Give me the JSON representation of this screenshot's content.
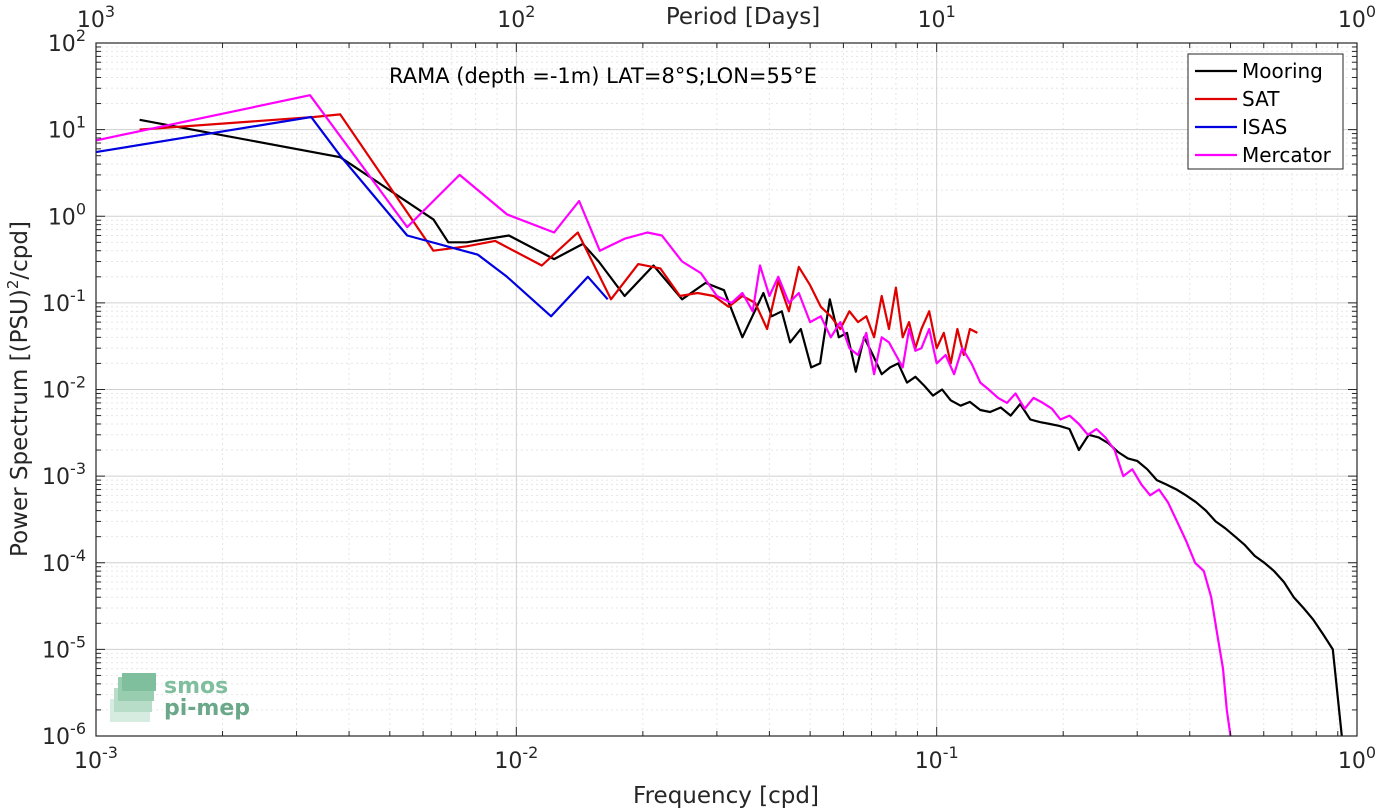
{
  "chart_data": {
    "type": "line",
    "scale": "log-log",
    "grid": true,
    "title": "",
    "annotation": "RAMA (depth =-1m) LAT=8°S;LON=55°E",
    "xlabel": "Frequency [cpd]",
    "ylabel": "Power Spectrum [(PSU)",
    "ylabel_sup": "2",
    "ylabel_tail": "/cpd]",
    "top_xlabel": "Period [Days]",
    "xlim": [
      0.001,
      1
    ],
    "ylim": [
      1e-06,
      100
    ],
    "x_ticks": [
      {
        "value": 0.001,
        "base": "10",
        "exp": "-3"
      },
      {
        "value": 0.01,
        "base": "10",
        "exp": "-2"
      },
      {
        "value": 0.1,
        "base": "10",
        "exp": "-1"
      },
      {
        "value": 1,
        "base": "10",
        "exp": "0"
      }
    ],
    "top_ticks": [
      {
        "value": 0.001,
        "base": "10",
        "exp": "3"
      },
      {
        "value": 0.01,
        "base": "10",
        "exp": "2"
      },
      {
        "value": 0.1,
        "base": "10",
        "exp": "1"
      },
      {
        "value": 1,
        "base": "10",
        "exp": "0"
      }
    ],
    "y_ticks": [
      {
        "value": 100,
        "base": "10",
        "exp": "2"
      },
      {
        "value": 10,
        "base": "10",
        "exp": "1"
      },
      {
        "value": 1,
        "base": "10",
        "exp": "0"
      },
      {
        "value": 0.1,
        "base": "10",
        "exp": "-1"
      },
      {
        "value": 0.01,
        "base": "10",
        "exp": "-2"
      },
      {
        "value": 0.001,
        "base": "10",
        "exp": "-3"
      },
      {
        "value": 0.0001,
        "base": "10",
        "exp": "-4"
      },
      {
        "value": 1e-05,
        "base": "10",
        "exp": "-5"
      },
      {
        "value": 1e-06,
        "base": "10",
        "exp": "-6"
      }
    ],
    "legend_position": "top-right",
    "series": [
      {
        "name": "Mooring",
        "color": "#000000",
        "x": [
          0.00127,
          0.00381,
          0.00635,
          0.00689,
          0.00762,
          0.0096,
          0.0123,
          0.0144,
          0.0157,
          0.0181,
          0.0212,
          0.0248,
          0.0282,
          0.0312,
          0.0345,
          0.0387,
          0.0405,
          0.0428,
          0.0448,
          0.0475,
          0.0503,
          0.0528,
          0.0557,
          0.0585,
          0.0612,
          0.0642,
          0.0672,
          0.0705,
          0.074,
          0.0775,
          0.081,
          0.085,
          0.089,
          0.0935,
          0.098,
          0.103,
          0.108,
          0.114,
          0.12,
          0.127,
          0.134,
          0.142,
          0.15,
          0.158,
          0.167,
          0.176,
          0.186,
          0.196,
          0.207,
          0.218,
          0.23,
          0.243,
          0.256,
          0.27,
          0.285,
          0.3,
          0.317,
          0.334,
          0.352,
          0.372,
          0.392,
          0.414,
          0.437,
          0.461,
          0.486,
          0.513,
          0.541,
          0.571,
          0.602,
          0.635,
          0.67,
          0.707,
          0.746,
          0.787,
          0.83,
          0.876,
          0.92
        ],
        "y": [
          13,
          4.8,
          0.92,
          0.5,
          0.5,
          0.6,
          0.32,
          0.48,
          0.3,
          0.12,
          0.27,
          0.11,
          0.17,
          0.14,
          0.04,
          0.13,
          0.07,
          0.08,
          0.035,
          0.05,
          0.018,
          0.02,
          0.11,
          0.04,
          0.045,
          0.016,
          0.04,
          0.025,
          0.015,
          0.018,
          0.02,
          0.012,
          0.014,
          0.011,
          0.0085,
          0.01,
          0.0075,
          0.0065,
          0.0072,
          0.0058,
          0.0055,
          0.0062,
          0.005,
          0.0068,
          0.0045,
          0.0042,
          0.004,
          0.0038,
          0.0035,
          0.002,
          0.003,
          0.0028,
          0.0024,
          0.0019,
          0.0016,
          0.0015,
          0.0012,
          0.0009,
          0.0008,
          0.0007,
          0.0006,
          0.0005,
          0.0004,
          0.0003,
          0.00025,
          0.0002,
          0.00016,
          0.00012,
          0.0001,
          8e-05,
          6e-05,
          4e-05,
          3e-05,
          2.2e-05,
          1.5e-05,
          1e-05,
          1e-06
        ]
      },
      {
        "name": "SAT",
        "color": "#e00000",
        "x": [
          0.00127,
          0.0033,
          0.00381,
          0.00635,
          0.00762,
          0.0089,
          0.0115,
          0.014,
          0.0168,
          0.0195,
          0.022,
          0.0245,
          0.027,
          0.0295,
          0.032,
          0.0345,
          0.037,
          0.0395,
          0.042,
          0.0445,
          0.047,
          0.05,
          0.053,
          0.056,
          0.059,
          0.062,
          0.065,
          0.068,
          0.071,
          0.074,
          0.077,
          0.08,
          0.083,
          0.086,
          0.089,
          0.092,
          0.096,
          0.1,
          0.104,
          0.108,
          0.112,
          0.116,
          0.12,
          0.125
        ],
        "y": [
          10,
          14,
          15,
          0.4,
          0.45,
          0.52,
          0.27,
          0.65,
          0.11,
          0.28,
          0.25,
          0.12,
          0.13,
          0.12,
          0.09,
          0.12,
          0.1,
          0.05,
          0.18,
          0.08,
          0.26,
          0.16,
          0.09,
          0.07,
          0.05,
          0.08,
          0.06,
          0.07,
          0.04,
          0.12,
          0.05,
          0.15,
          0.04,
          0.06,
          0.03,
          0.05,
          0.08,
          0.03,
          0.045,
          0.02,
          0.05,
          0.025,
          0.05,
          0.045
        ]
      },
      {
        "name": "ISAS",
        "color": "#0000e0",
        "x": [
          0.001,
          0.00325,
          0.00381,
          0.0055,
          0.0081,
          0.0095,
          0.0121,
          0.0148,
          0.0165
        ],
        "y": [
          5.5,
          14,
          5.0,
          0.6,
          0.36,
          0.2,
          0.07,
          0.2,
          0.11
        ]
      },
      {
        "name": "Mercator",
        "color": "#ff00ff",
        "x": [
          0.001,
          0.00323,
          0.0055,
          0.00733,
          0.0095,
          0.0123,
          0.0141,
          0.0158,
          0.0181,
          0.0205,
          0.0222,
          0.0248,
          0.0275,
          0.03,
          0.0325,
          0.0345,
          0.0365,
          0.038,
          0.04,
          0.042,
          0.0445,
          0.047,
          0.05,
          0.053,
          0.056,
          0.059,
          0.062,
          0.065,
          0.068,
          0.071,
          0.074,
          0.077,
          0.08,
          0.083,
          0.086,
          0.089,
          0.092,
          0.096,
          0.1,
          0.105,
          0.11,
          0.115,
          0.121,
          0.127,
          0.133,
          0.14,
          0.147,
          0.154,
          0.162,
          0.17,
          0.179,
          0.188,
          0.197,
          0.207,
          0.218,
          0.229,
          0.24,
          0.252,
          0.265,
          0.278,
          0.292,
          0.307,
          0.322,
          0.338,
          0.355,
          0.373,
          0.392,
          0.412,
          0.432,
          0.45,
          0.465,
          0.48,
          0.49,
          0.5
        ],
        "y": [
          7.5,
          25,
          0.75,
          3.0,
          1.05,
          0.65,
          1.5,
          0.4,
          0.55,
          0.65,
          0.6,
          0.3,
          0.22,
          0.12,
          0.1,
          0.13,
          0.08,
          0.27,
          0.12,
          0.2,
          0.1,
          0.13,
          0.06,
          0.07,
          0.04,
          0.06,
          0.03,
          0.025,
          0.045,
          0.015,
          0.04,
          0.035,
          0.025,
          0.018,
          0.05,
          0.028,
          0.03,
          0.05,
          0.02,
          0.025,
          0.015,
          0.03,
          0.02,
          0.012,
          0.01,
          0.008,
          0.007,
          0.009,
          0.006,
          0.008,
          0.007,
          0.006,
          0.0045,
          0.005,
          0.004,
          0.003,
          0.0035,
          0.0028,
          0.002,
          0.001,
          0.0012,
          0.0008,
          0.0006,
          0.0007,
          0.0005,
          0.0003,
          0.00018,
          0.0001,
          8e-05,
          4e-05,
          1.5e-05,
          6e-06,
          2e-06,
          1e-06
        ]
      }
    ]
  },
  "watermark": {
    "line1": "smos",
    "line2": "pi-mep"
  }
}
